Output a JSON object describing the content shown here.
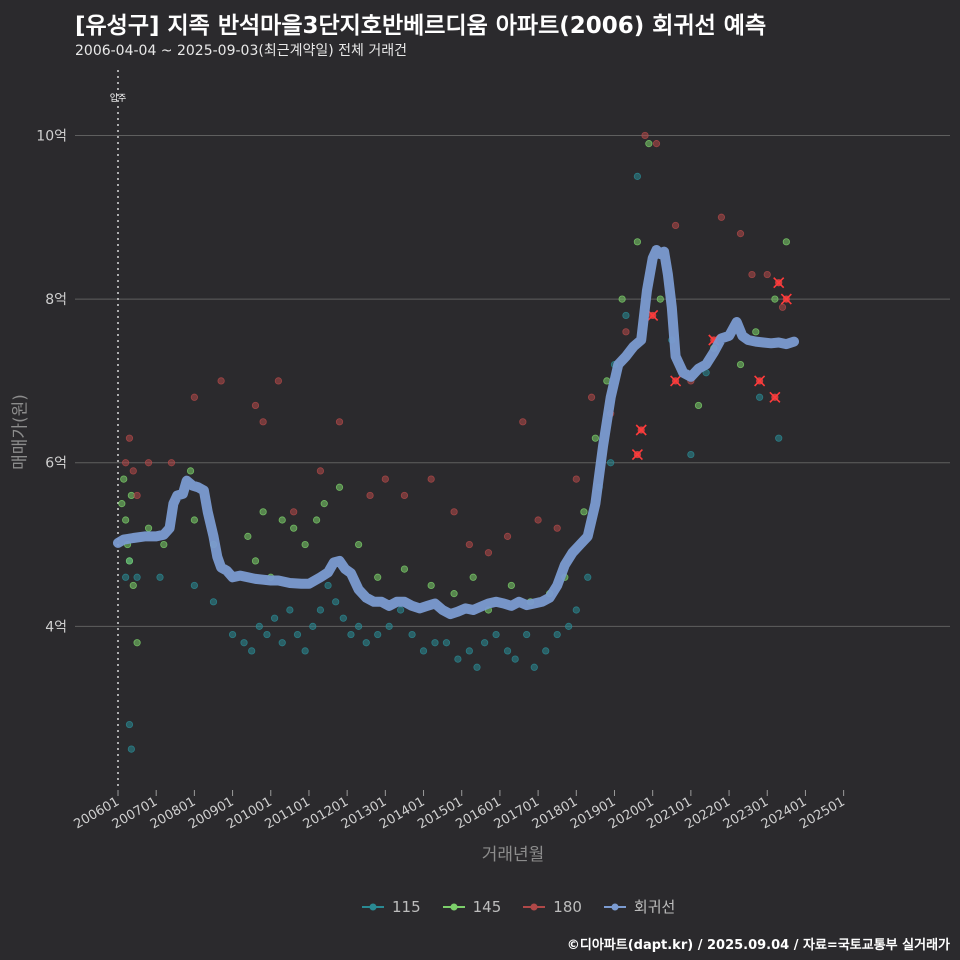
{
  "chart_data": {
    "type": "scatter",
    "title": "[유성구] 지족 반석마을3단지호반베르디움 아파트(2006) 회귀선 예측",
    "subtitle": "2006-04-04 ~ 2025-09-03(최근계약일) 전체 거래건",
    "xlabel": "거래년월",
    "ylabel": "매매가(원)",
    "x_ticks": [
      "200601",
      "200701",
      "200801",
      "200901",
      "201001",
      "201101",
      "201201",
      "201301",
      "201401",
      "201501",
      "201601",
      "201701",
      "201801",
      "201901",
      "202001",
      "202101",
      "202201",
      "202301",
      "202401",
      "202501"
    ],
    "y_ticks": [
      {
        "value": 4,
        "label": "4억"
      },
      {
        "value": 6,
        "label": "6억"
      },
      {
        "value": 8,
        "label": "8억"
      },
      {
        "value": 10,
        "label": "10억"
      }
    ],
    "xlim": [
      2006.0,
      2025.9
    ],
    "ylim": [
      2.0,
      10.8
    ],
    "annotation": {
      "x": 2006.0,
      "label": "입주"
    },
    "caption": "©디아파트(dapt.kr) / 2025.09.04 / 자료=국토교통부 실거래가",
    "colors": {
      "115": "#2a8a93",
      "145": "#7ccf6a",
      "180": "#b04848",
      "trend": "#7b9bd1",
      "grid": "#5f5f5f"
    },
    "legend": [
      {
        "key": "115",
        "label": "115"
      },
      {
        "key": "145",
        "label": "145"
      },
      {
        "key": "180",
        "label": "180"
      },
      {
        "key": "trend",
        "label": "회귀선"
      }
    ],
    "trend": [
      [
        2006.0,
        5.02
      ],
      [
        2006.15,
        5.06
      ],
      [
        2006.4,
        5.08
      ],
      [
        2006.7,
        5.1
      ],
      [
        2007.0,
        5.1
      ],
      [
        2007.2,
        5.12
      ],
      [
        2007.35,
        5.2
      ],
      [
        2007.45,
        5.5
      ],
      [
        2007.55,
        5.6
      ],
      [
        2007.7,
        5.62
      ],
      [
        2007.8,
        5.78
      ],
      [
        2007.95,
        5.72
      ],
      [
        2008.1,
        5.7
      ],
      [
        2008.25,
        5.66
      ],
      [
        2008.35,
        5.4
      ],
      [
        2008.5,
        5.1
      ],
      [
        2008.6,
        4.85
      ],
      [
        2008.7,
        4.72
      ],
      [
        2008.85,
        4.68
      ],
      [
        2009.0,
        4.6
      ],
      [
        2009.2,
        4.62
      ],
      [
        2009.4,
        4.6
      ],
      [
        2009.6,
        4.58
      ],
      [
        2009.8,
        4.57
      ],
      [
        2010.0,
        4.56
      ],
      [
        2010.2,
        4.56
      ],
      [
        2010.5,
        4.53
      ],
      [
        2010.8,
        4.52
      ],
      [
        2011.0,
        4.52
      ],
      [
        2011.3,
        4.6
      ],
      [
        2011.5,
        4.66
      ],
      [
        2011.65,
        4.78
      ],
      [
        2011.8,
        4.8
      ],
      [
        2011.95,
        4.7
      ],
      [
        2012.1,
        4.65
      ],
      [
        2012.3,
        4.45
      ],
      [
        2012.5,
        4.35
      ],
      [
        2012.7,
        4.3
      ],
      [
        2012.9,
        4.3
      ],
      [
        2013.1,
        4.25
      ],
      [
        2013.3,
        4.3
      ],
      [
        2013.5,
        4.3
      ],
      [
        2013.7,
        4.25
      ],
      [
        2013.9,
        4.22
      ],
      [
        2014.1,
        4.25
      ],
      [
        2014.3,
        4.28
      ],
      [
        2014.5,
        4.2
      ],
      [
        2014.7,
        4.15
      ],
      [
        2014.9,
        4.18
      ],
      [
        2015.1,
        4.22
      ],
      [
        2015.3,
        4.2
      ],
      [
        2015.5,
        4.24
      ],
      [
        2015.7,
        4.28
      ],
      [
        2015.9,
        4.3
      ],
      [
        2016.1,
        4.28
      ],
      [
        2016.3,
        4.25
      ],
      [
        2016.5,
        4.3
      ],
      [
        2016.7,
        4.26
      ],
      [
        2016.9,
        4.28
      ],
      [
        2017.1,
        4.3
      ],
      [
        2017.3,
        4.35
      ],
      [
        2017.5,
        4.5
      ],
      [
        2017.7,
        4.75
      ],
      [
        2017.9,
        4.9
      ],
      [
        2018.1,
        5.0
      ],
      [
        2018.3,
        5.1
      ],
      [
        2018.5,
        5.5
      ],
      [
        2018.7,
        6.2
      ],
      [
        2018.9,
        6.8
      ],
      [
        2019.1,
        7.2
      ],
      [
        2019.3,
        7.3
      ],
      [
        2019.5,
        7.42
      ],
      [
        2019.7,
        7.5
      ],
      [
        2019.85,
        8.1
      ],
      [
        2020.0,
        8.5
      ],
      [
        2020.1,
        8.6
      ],
      [
        2020.2,
        8.55
      ],
      [
        2020.3,
        8.58
      ],
      [
        2020.4,
        8.3
      ],
      [
        2020.5,
        7.9
      ],
      [
        2020.6,
        7.3
      ],
      [
        2020.8,
        7.1
      ],
      [
        2021.0,
        7.05
      ],
      [
        2021.2,
        7.15
      ],
      [
        2021.4,
        7.2
      ],
      [
        2021.6,
        7.35
      ],
      [
        2021.8,
        7.52
      ],
      [
        2022.0,
        7.55
      ],
      [
        2022.2,
        7.72
      ],
      [
        2022.35,
        7.55
      ],
      [
        2022.5,
        7.5
      ],
      [
        2022.7,
        7.48
      ],
      [
        2022.9,
        7.47
      ],
      [
        2023.1,
        7.46
      ],
      [
        2023.3,
        7.47
      ],
      [
        2023.5,
        7.45
      ],
      [
        2023.7,
        7.48
      ]
    ],
    "series": [
      {
        "name": "115",
        "points": [
          [
            2006.3,
            2.8
          ],
          [
            2006.35,
            2.5
          ],
          [
            2006.2,
            4.6
          ],
          [
            2006.3,
            4.8
          ],
          [
            2006.5,
            4.6
          ],
          [
            2007.1,
            4.6
          ],
          [
            2008.0,
            4.5
          ],
          [
            2008.5,
            4.3
          ],
          [
            2009.0,
            3.9
          ],
          [
            2009.3,
            3.8
          ],
          [
            2009.5,
            3.7
          ],
          [
            2009.7,
            4.0
          ],
          [
            2009.9,
            3.9
          ],
          [
            2010.1,
            4.1
          ],
          [
            2010.3,
            3.8
          ],
          [
            2010.5,
            4.2
          ],
          [
            2010.7,
            3.9
          ],
          [
            2010.9,
            3.7
          ],
          [
            2011.1,
            4.0
          ],
          [
            2011.3,
            4.2
          ],
          [
            2011.5,
            4.5
          ],
          [
            2011.7,
            4.3
          ],
          [
            2011.9,
            4.1
          ],
          [
            2012.1,
            3.9
          ],
          [
            2012.3,
            4.0
          ],
          [
            2012.5,
            3.8
          ],
          [
            2012.8,
            3.9
          ],
          [
            2013.1,
            4.0
          ],
          [
            2013.4,
            4.2
          ],
          [
            2013.7,
            3.9
          ],
          [
            2014.0,
            3.7
          ],
          [
            2014.3,
            3.8
          ],
          [
            2014.6,
            3.8
          ],
          [
            2014.9,
            3.6
          ],
          [
            2015.2,
            3.7
          ],
          [
            2015.4,
            3.5
          ],
          [
            2015.6,
            3.8
          ],
          [
            2015.9,
            3.9
          ],
          [
            2016.2,
            3.7
          ],
          [
            2016.4,
            3.6
          ],
          [
            2016.7,
            3.9
          ],
          [
            2016.9,
            3.5
          ],
          [
            2017.2,
            3.7
          ],
          [
            2017.5,
            3.9
          ],
          [
            2017.8,
            4.0
          ],
          [
            2018.0,
            4.2
          ],
          [
            2018.3,
            4.6
          ],
          [
            2018.6,
            5.7
          ],
          [
            2018.9,
            6.0
          ],
          [
            2019.0,
            7.2
          ],
          [
            2019.3,
            7.8
          ],
          [
            2019.6,
            9.5
          ],
          [
            2020.5,
            7.5
          ],
          [
            2021.0,
            6.1
          ],
          [
            2021.4,
            7.1
          ],
          [
            2022.8,
            6.8
          ],
          [
            2023.3,
            6.3
          ]
        ]
      },
      {
        "name": "145",
        "points": [
          [
            2006.1,
            5.5
          ],
          [
            2006.15,
            5.8
          ],
          [
            2006.2,
            5.3
          ],
          [
            2006.25,
            5.0
          ],
          [
            2006.3,
            4.8
          ],
          [
            2006.35,
            5.6
          ],
          [
            2006.4,
            4.5
          ],
          [
            2006.5,
            3.8
          ],
          [
            2006.8,
            5.2
          ],
          [
            2007.2,
            5.0
          ],
          [
            2007.9,
            5.9
          ],
          [
            2008.0,
            5.3
          ],
          [
            2008.5,
            5.0
          ],
          [
            2009.4,
            5.1
          ],
          [
            2009.6,
            4.8
          ],
          [
            2009.8,
            5.4
          ],
          [
            2010.0,
            4.6
          ],
          [
            2010.3,
            5.3
          ],
          [
            2010.6,
            5.2
          ],
          [
            2010.9,
            5.0
          ],
          [
            2011.2,
            5.3
          ],
          [
            2011.4,
            5.5
          ],
          [
            2011.8,
            5.7
          ],
          [
            2012.3,
            5.0
          ],
          [
            2012.8,
            4.6
          ],
          [
            2013.5,
            4.7
          ],
          [
            2014.2,
            4.5
          ],
          [
            2014.8,
            4.4
          ],
          [
            2015.3,
            4.6
          ],
          [
            2015.7,
            4.2
          ],
          [
            2016.3,
            4.5
          ],
          [
            2016.8,
            4.3
          ],
          [
            2017.3,
            4.4
          ],
          [
            2017.7,
            4.6
          ],
          [
            2018.2,
            5.4
          ],
          [
            2018.5,
            6.3
          ],
          [
            2018.8,
            7.0
          ],
          [
            2019.2,
            8.0
          ],
          [
            2019.6,
            8.7
          ],
          [
            2019.9,
            9.9
          ],
          [
            2020.2,
            8.0
          ],
          [
            2021.2,
            6.7
          ],
          [
            2021.6,
            7.4
          ],
          [
            2022.3,
            7.2
          ],
          [
            2022.7,
            7.6
          ],
          [
            2023.2,
            8.0
          ],
          [
            2023.5,
            8.7
          ]
        ]
      },
      {
        "name": "180",
        "points": [
          [
            2006.2,
            6.0
          ],
          [
            2006.3,
            6.3
          ],
          [
            2006.4,
            5.9
          ],
          [
            2006.5,
            5.6
          ],
          [
            2006.8,
            6.0
          ],
          [
            2007.4,
            6.0
          ],
          [
            2008.0,
            6.8
          ],
          [
            2008.7,
            7.0
          ],
          [
            2009.6,
            6.7
          ],
          [
            2009.8,
            6.5
          ],
          [
            2010.2,
            7.0
          ],
          [
            2010.6,
            5.4
          ],
          [
            2011.3,
            5.9
          ],
          [
            2011.8,
            6.5
          ],
          [
            2012.6,
            5.6
          ],
          [
            2013.0,
            5.8
          ],
          [
            2013.5,
            5.6
          ],
          [
            2014.2,
            5.8
          ],
          [
            2014.8,
            5.4
          ],
          [
            2015.2,
            5.0
          ],
          [
            2015.7,
            4.9
          ],
          [
            2016.2,
            5.1
          ],
          [
            2016.6,
            6.5
          ],
          [
            2017.0,
            5.3
          ],
          [
            2017.5,
            5.2
          ],
          [
            2018.0,
            5.8
          ],
          [
            2018.4,
            6.8
          ],
          [
            2018.9,
            6.6
          ],
          [
            2019.3,
            7.6
          ],
          [
            2019.8,
            10.0
          ],
          [
            2020.1,
            9.9
          ],
          [
            2020.6,
            8.9
          ],
          [
            2021.0,
            7.0
          ],
          [
            2021.8,
            9.0
          ],
          [
            2022.3,
            8.8
          ],
          [
            2022.6,
            8.3
          ],
          [
            2023.0,
            8.3
          ],
          [
            2023.4,
            7.9
          ]
        ]
      }
    ],
    "highlight": [
      [
        2019.6,
        6.1
      ],
      [
        2019.7,
        6.4
      ],
      [
        2020.0,
        7.8
      ],
      [
        2020.6,
        7.0
      ],
      [
        2021.6,
        7.5
      ],
      [
        2022.8,
        7.0
      ],
      [
        2023.2,
        6.8
      ],
      [
        2023.3,
        8.2
      ],
      [
        2023.5,
        8.0
      ]
    ]
  }
}
